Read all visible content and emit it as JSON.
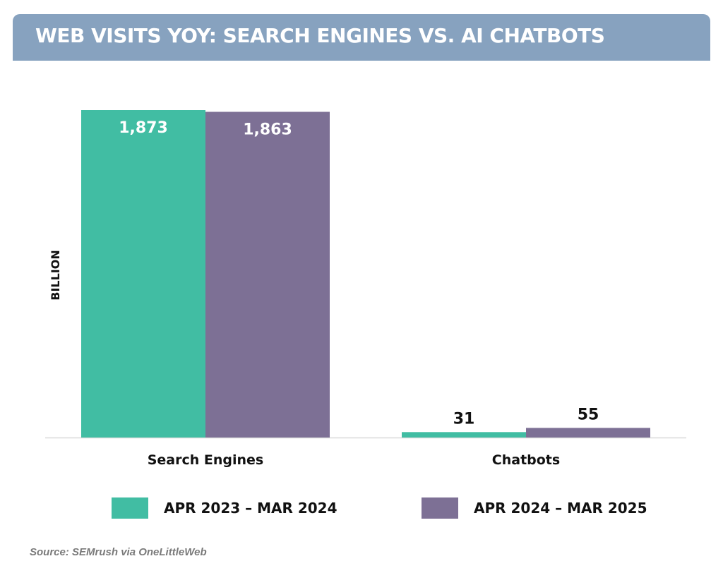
{
  "title": "WEB VISITS YOY: SEARCH ENGINES VS. AI CHATBOTS",
  "source": "Source: SEMrush via OneLittleWeb",
  "colors": {
    "banner": "#87a2bf",
    "series1": "#41bda3",
    "series2": "#7d7095"
  },
  "chart_data": {
    "type": "bar",
    "title": "WEB VISITS YOY: SEARCH ENGINES VS. AI CHATBOTS",
    "xlabel": "",
    "ylabel": "BILLION",
    "categories": [
      "Search Engines",
      "Chatbots"
    ],
    "series": [
      {
        "name": "APR 2023 – MAR 2024",
        "values": [
          1873,
          31
        ],
        "labels": [
          "1,873",
          "31"
        ],
        "color": "#41bda3"
      },
      {
        "name": "APR 2024 – MAR 2025",
        "values": [
          1863,
          55
        ],
        "labels": [
          "1,863",
          "55"
        ],
        "color": "#7d7095"
      }
    ],
    "ylim": [
      0,
      1873
    ],
    "grid": false,
    "legend_position": "bottom"
  }
}
